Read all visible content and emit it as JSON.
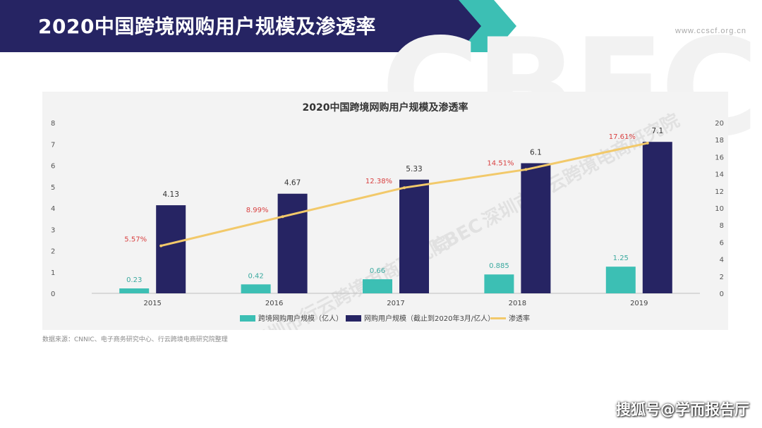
{
  "header": {
    "title": "2020中国跨境网购用户规模及渗透率",
    "site_url": "www.ccscf.org.cn",
    "background_logo_text": "CBEC"
  },
  "source_note": "数据来源：CNNIC、电子商务研究中心、行云跨境电商研究院整理",
  "credit": "搜狐号@学而报告厅",
  "watermark": {
    "logo": "CBEC",
    "text": "深圳市行云跨境电商研究院"
  },
  "colors": {
    "banner_navy": "#262463",
    "banner_teal": "#3cbfb4",
    "series_teal": "#3cbfb4",
    "series_navy": "#262463",
    "line_yellow": "#f2c96a",
    "pct_label_red": "#d94141"
  },
  "chart_data": {
    "type": "bar",
    "title": "2020中国跨境网购用户规模及渗透率",
    "categories": [
      "2015",
      "2016",
      "2017",
      "2018",
      "2019"
    ],
    "series": [
      {
        "name": "跨境网购用户规模（亿人）",
        "type": "bar",
        "axis": "left",
        "values": [
          0.23,
          0.42,
          0.66,
          0.885,
          1.25
        ],
        "labels": [
          "0.23",
          "0.42",
          "0.66",
          "0.885",
          "1.25"
        ]
      },
      {
        "name": "网购用户规模（截止到2020年3月/亿人）",
        "type": "bar",
        "axis": "left",
        "values": [
          4.13,
          4.67,
          5.33,
          6.1,
          7.1
        ],
        "labels": [
          "4.13",
          "4.67",
          "5.33",
          "6.1",
          "7.1"
        ]
      },
      {
        "name": "渗透率",
        "type": "line",
        "axis": "right",
        "values": [
          5.57,
          8.99,
          12.38,
          14.51,
          17.61
        ],
        "labels": [
          "5.57%",
          "8.99%",
          "12.38%",
          "14.51%",
          "17.61%"
        ]
      }
    ],
    "y_left": {
      "range": [
        0,
        8
      ],
      "ticks": [
        "0",
        "1",
        "2",
        "3",
        "4",
        "5",
        "6",
        "7",
        "8"
      ]
    },
    "y_right": {
      "range": [
        0,
        20
      ],
      "ticks": [
        "0",
        "2",
        "4",
        "6",
        "8",
        "10",
        "12",
        "14",
        "16",
        "18",
        "20"
      ]
    },
    "grid": false,
    "legend_position": "bottom"
  }
}
